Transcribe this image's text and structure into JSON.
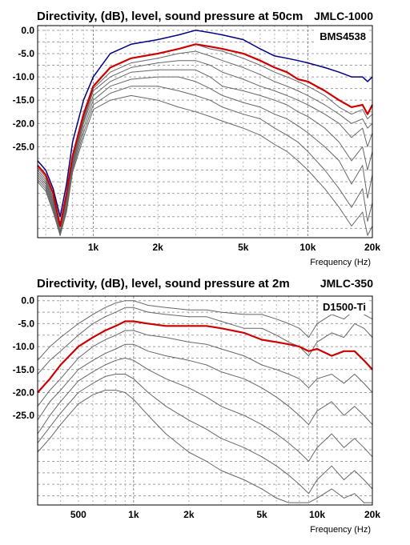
{
  "chart_data": [
    {
      "type": "line",
      "title": "Directivity, (dB), level, sound pressure at 50cm",
      "model": "JMLC-1000",
      "driver": "BMS4538",
      "xlabel": "Frequency (Hz)",
      "x_scale": "log",
      "xlim": [
        550,
        20000
      ],
      "ylim": [
        -44.5,
        1.0
      ],
      "x_tick_labels": [
        {
          "value": 1000,
          "label": "1k"
        },
        {
          "value": 2000,
          "label": "2k"
        },
        {
          "value": 5000,
          "label": "5k"
        },
        {
          "value": 10000,
          "label": "10k"
        },
        {
          "value": 20000,
          "label": "20k"
        }
      ],
      "y_tick_labels": [
        {
          "value": 0,
          "label": "0.0"
        },
        {
          "value": -5,
          "label": "-5.0"
        },
        {
          "value": -10,
          "label": "-10.0"
        },
        {
          "value": -15,
          "label": "-15.0"
        },
        {
          "value": -20,
          "label": "-20.0"
        },
        {
          "value": -25,
          "label": "-25.0"
        }
      ],
      "grid": true,
      "x": [
        550,
        600,
        650,
        700,
        750,
        800,
        900,
        1000,
        1200,
        1500,
        2000,
        2500,
        3000,
        3500,
        4000,
        5000,
        6000,
        7000,
        8000,
        9000,
        10000,
        12000,
        14000,
        16000,
        18000,
        19000,
        20000
      ],
      "series": [
        {
          "color": "#000080",
          "width": 1.5,
          "values": [
            -28,
            -30,
            -34,
            -40,
            -33,
            -24,
            -15,
            -10,
            -5,
            -3,
            -2,
            -1,
            0,
            -0.5,
            -1,
            -2,
            -4,
            -5.5,
            -6,
            -6.5,
            -7,
            -8,
            -9,
            -10,
            -10,
            -11,
            -10
          ]
        },
        {
          "color": "#cc0000",
          "width": 2.2,
          "values": [
            -29,
            -31,
            -35,
            -42,
            -35,
            -27,
            -18,
            -12,
            -8,
            -6,
            -5,
            -4,
            -3,
            -3.5,
            -4,
            -5,
            -6.5,
            -8,
            -9,
            -10.5,
            -11,
            -13,
            -15,
            -16.5,
            -16,
            -18,
            -16
          ]
        },
        {
          "color": "#666666",
          "width": 1,
          "values": [
            -29.5,
            -31.5,
            -36,
            -43,
            -36,
            -27,
            -18.5,
            -12,
            -8,
            -6,
            -5,
            -4,
            -3,
            -4,
            -4.5,
            -6,
            -7.5,
            -9,
            -10,
            -11,
            -12,
            -14,
            -16.5,
            -18,
            -17,
            -19,
            -18
          ]
        },
        {
          "color": "#666666",
          "width": 1,
          "values": [
            -30,
            -32,
            -36.5,
            -43.5,
            -36.5,
            -28,
            -19,
            -12.5,
            -9,
            -7,
            -6,
            -5,
            -4.5,
            -5.5,
            -6.5,
            -8,
            -9.5,
            -11,
            -12,
            -13,
            -14,
            -16,
            -18,
            -20,
            -19,
            -21,
            -20
          ]
        },
        {
          "color": "#666666",
          "width": 1,
          "values": [
            -30.5,
            -32.5,
            -37,
            -44,
            -37,
            -28.5,
            -19.5,
            -13,
            -10,
            -8,
            -7,
            -6.5,
            -6.5,
            -7.5,
            -9,
            -10.5,
            -12,
            -13,
            -14,
            -15,
            -16,
            -18,
            -20,
            -23,
            -21,
            -25,
            -22
          ]
        },
        {
          "color": "#666666",
          "width": 1,
          "values": [
            -31,
            -33,
            -37.5,
            -44,
            -37.5,
            -29,
            -20,
            -14,
            -11,
            -9,
            -8.5,
            -8.5,
            -8.5,
            -10,
            -12,
            -13,
            -14,
            -15,
            -16,
            -17.5,
            -18.5,
            -21,
            -24,
            -28,
            -25,
            -30,
            -26
          ]
        },
        {
          "color": "#666666",
          "width": 1,
          "values": [
            -31.5,
            -33.5,
            -38,
            -44,
            -38,
            -29.5,
            -21,
            -15,
            -12,
            -10.5,
            -10,
            -10,
            -11,
            -12.5,
            -14,
            -15.5,
            -16.5,
            -18,
            -19,
            -20.5,
            -22,
            -25,
            -28,
            -33,
            -29,
            -36,
            -31
          ]
        },
        {
          "color": "#666666",
          "width": 1,
          "values": [
            -32,
            -34,
            -38.5,
            -44,
            -38.5,
            -30,
            -22,
            -16,
            -13.5,
            -12,
            -12,
            -13,
            -14,
            -15,
            -16.5,
            -18,
            -19,
            -21,
            -22.5,
            -24,
            -26,
            -30,
            -34,
            -38,
            -34,
            -41,
            -37
          ]
        },
        {
          "color": "#666666",
          "width": 1,
          "values": [
            -32.5,
            -34.5,
            -39,
            -44,
            -39,
            -30.5,
            -23,
            -17,
            -15,
            -14,
            -15,
            -16.5,
            -17.5,
            -18.5,
            -19.5,
            -21,
            -22.5,
            -24.5,
            -26,
            -28,
            -30,
            -34,
            -38,
            -42,
            -39,
            -44,
            -42
          ]
        }
      ]
    },
    {
      "type": "line",
      "title": "Directivity, (dB), level, sound pressure at 2m",
      "model": "JMLC-350",
      "driver": "D1500-Ti",
      "xlabel": "Frequency (Hz)",
      "x_scale": "log",
      "xlim": [
        300,
        20000
      ],
      "ylim": [
        -44.5,
        1.0
      ],
      "x_tick_labels": [
        {
          "value": 500,
          "label": "500"
        },
        {
          "value": 1000,
          "label": "1k"
        },
        {
          "value": 2000,
          "label": "2k"
        },
        {
          "value": 5000,
          "label": "5k"
        },
        {
          "value": 10000,
          "label": "10k"
        },
        {
          "value": 20000,
          "label": "20k"
        }
      ],
      "y_tick_labels": [
        {
          "value": 0,
          "label": "0.0"
        },
        {
          "value": -5,
          "label": "-5.0"
        },
        {
          "value": -10,
          "label": "-10.0"
        },
        {
          "value": -15,
          "label": "-15.0"
        },
        {
          "value": -20,
          "label": "-20.0"
        },
        {
          "value": -25,
          "label": "-25.0"
        }
      ],
      "grid": true,
      "x": [
        300,
        350,
        400,
        500,
        600,
        700,
        800,
        900,
        1000,
        1200,
        1500,
        2000,
        2500,
        3000,
        4000,
        5000,
        6000,
        7000,
        8000,
        9000,
        10000,
        12000,
        14000,
        16000,
        18000,
        20000
      ],
      "series": [
        {
          "color": "#666666",
          "width": 1,
          "values": [
            -13,
            -10,
            -8,
            -5,
            -3,
            -1.5,
            -0.5,
            0,
            0,
            -1,
            -1.5,
            -2,
            -2,
            -2.5,
            -3,
            -3,
            -4,
            -5,
            -6,
            -8,
            -5,
            -3,
            -4,
            -2,
            -3,
            -4
          ]
        },
        {
          "color": "#666666",
          "width": 1,
          "values": [
            -16,
            -13,
            -11,
            -7.5,
            -5,
            -3.5,
            -2.5,
            -1.5,
            -1.5,
            -2.5,
            -3,
            -3.5,
            -3.5,
            -4.5,
            -6,
            -6,
            -7.5,
            -9,
            -10,
            -12,
            -9,
            -7,
            -8,
            -5,
            -6,
            -8
          ]
        },
        {
          "color": "#cc0000",
          "width": 2.2,
          "values": [
            -20,
            -17,
            -14,
            -10,
            -8,
            -6.5,
            -5.5,
            -4.5,
            -4.5,
            -5,
            -5.5,
            -5.5,
            -5.5,
            -6,
            -7,
            -8.5,
            -9,
            -9.5,
            -10,
            -11,
            -10.5,
            -12,
            -11,
            -11,
            -13,
            -15
          ]
        },
        {
          "color": "#666666",
          "width": 1,
          "values": [
            -23,
            -19.5,
            -17,
            -12.5,
            -10,
            -8.5,
            -7.5,
            -6.5,
            -6.5,
            -7.5,
            -8,
            -9,
            -9.5,
            -10.5,
            -12,
            -14,
            -15,
            -16,
            -17,
            -19,
            -17,
            -16,
            -18,
            -16,
            -18,
            -20
          ]
        },
        {
          "color": "#666666",
          "width": 1,
          "values": [
            -26,
            -22,
            -19.5,
            -15,
            -13,
            -11.5,
            -10.5,
            -9.5,
            -9.5,
            -11,
            -12,
            -13,
            -14,
            -15.5,
            -17,
            -19,
            -21,
            -23,
            -25,
            -27,
            -24,
            -22,
            -25,
            -23,
            -25,
            -27
          ]
        },
        {
          "color": "#666666",
          "width": 1,
          "values": [
            -29,
            -25,
            -22,
            -17.5,
            -15.5,
            -14,
            -13,
            -12.5,
            -13,
            -15,
            -17,
            -19,
            -21,
            -23,
            -25,
            -27,
            -29,
            -31,
            -33,
            -35,
            -32,
            -29,
            -32,
            -30,
            -32,
            -34
          ]
        },
        {
          "color": "#666666",
          "width": 1,
          "values": [
            -31,
            -27.5,
            -24.5,
            -20,
            -18,
            -16.5,
            -16,
            -16,
            -17,
            -20,
            -23,
            -26,
            -28,
            -30,
            -32,
            -34,
            -36,
            -38,
            -40,
            -42,
            -39,
            -36,
            -39,
            -37,
            -39,
            -41
          ]
        },
        {
          "color": "#666666",
          "width": 1,
          "values": [
            -33,
            -30,
            -27,
            -22.5,
            -20.5,
            -19.5,
            -19.5,
            -20,
            -21.5,
            -25,
            -29,
            -33,
            -35,
            -37,
            -39,
            -41,
            -43,
            -44,
            -44,
            -44,
            -43,
            -41,
            -43,
            -42,
            -44,
            -44
          ]
        }
      ]
    }
  ]
}
